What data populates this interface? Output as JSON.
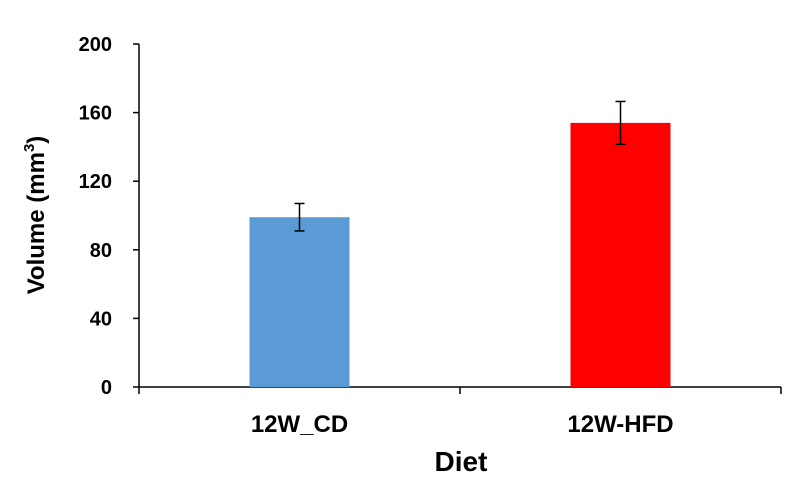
{
  "chart_data": {
    "type": "bar",
    "title": "",
    "xlabel": "Diet",
    "ylabel": {
      "main": "Volume (mm",
      "superscript": "3",
      "close": ")"
    },
    "categories": [
      "12W_CD",
      "12W-HFD"
    ],
    "values": [
      99,
      154
    ],
    "errors": [
      8,
      12.5
    ],
    "colors": [
      "#5B9BD5",
      "#FF0000"
    ],
    "ylim": [
      0,
      200
    ],
    "yticks": [
      0,
      40,
      80,
      120,
      160,
      200
    ],
    "grid": false,
    "legend": "none"
  }
}
